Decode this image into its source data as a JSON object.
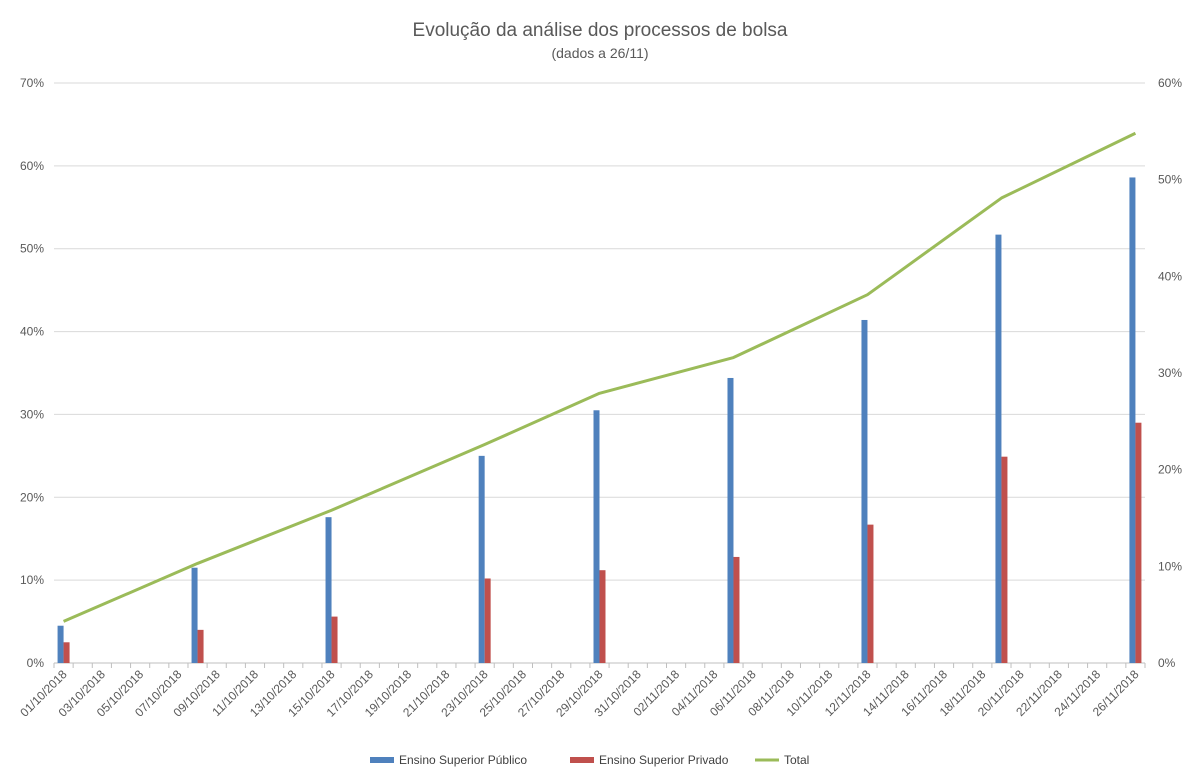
{
  "chart_data": {
    "type": "bar+line",
    "title": "Evolução da análise dos processos de bolsa",
    "subtitle": "(dados a 26/11)",
    "x_ticks": [
      "01/10/2018",
      "03/10/2018",
      "05/10/2018",
      "07/10/2018",
      "09/10/2018",
      "11/10/2018",
      "13/10/2018",
      "15/10/2018",
      "17/10/2018",
      "19/10/2018",
      "21/10/2018",
      "23/10/2018",
      "25/10/2018",
      "27/10/2018",
      "29/10/2018",
      "31/10/2018",
      "02/11/2018",
      "04/11/2018",
      "06/11/2018",
      "08/11/2018",
      "10/11/2018",
      "12/11/2018",
      "14/11/2018",
      "16/11/2018",
      "18/11/2018",
      "20/11/2018",
      "22/11/2018",
      "24/11/2018",
      "26/11/2018"
    ],
    "dates": [
      "01/10/2018",
      "08/10/2018",
      "15/10/2018",
      "23/10/2018",
      "29/10/2018",
      "05/11/2018",
      "12/11/2018",
      "19/11/2018",
      "26/11/2018"
    ],
    "series": [
      {
        "name": "Ensino Superior Público",
        "type": "bar",
        "axis": "left",
        "color": "#4F81BD",
        "values": [
          4.5,
          11.5,
          17.6,
          25.0,
          30.5,
          34.4,
          41.4,
          51.7,
          58.6
        ]
      },
      {
        "name": "Ensino Superior Privado",
        "type": "bar",
        "axis": "left",
        "color": "#C0504D",
        "values": [
          2.5,
          4.0,
          5.6,
          10.2,
          11.2,
          12.8,
          16.7,
          24.9,
          29.0
        ]
      },
      {
        "name": "Total",
        "type": "line",
        "axis": "right",
        "color": "#9BBB59",
        "values": [
          4.3,
          10.3,
          15.8,
          22.6,
          27.9,
          31.6,
          38.1,
          48.1,
          54.8
        ]
      }
    ],
    "left_axis": {
      "min": 0,
      "max": 70,
      "ticks": [
        "0%",
        "10%",
        "20%",
        "30%",
        "40%",
        "50%",
        "60%",
        "70%"
      ]
    },
    "right_axis": {
      "min": 0,
      "max": 60,
      "ticks": [
        "0%",
        "10%",
        "20%",
        "30%",
        "40%",
        "50%",
        "60%"
      ]
    },
    "grid": true,
    "legend_position": "bottom"
  }
}
